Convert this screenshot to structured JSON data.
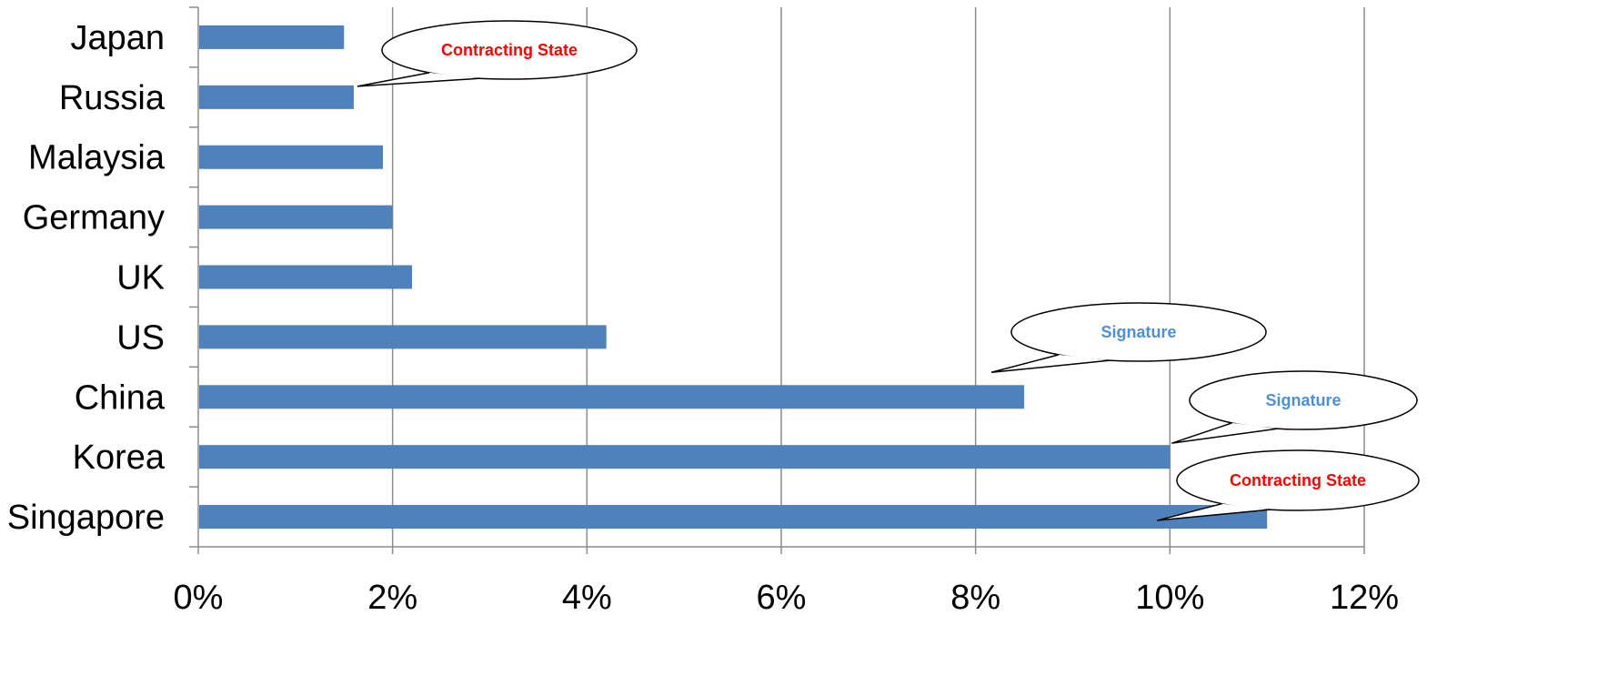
{
  "chart_data": {
    "type": "bar",
    "orientation": "horizontal",
    "categories": [
      "Japan",
      "Russia",
      "Malaysia",
      "Germany",
      "UK",
      "US",
      "China",
      "Korea",
      "Singapore"
    ],
    "values": [
      1.5,
      1.6,
      1.9,
      2.0,
      2.2,
      4.2,
      8.5,
      10.0,
      11.0
    ],
    "xlim": [
      0,
      12
    ],
    "x_ticks": [
      0,
      2,
      4,
      6,
      8,
      10,
      12
    ],
    "x_tick_labels": [
      "0%",
      "2%",
      "4%",
      "6%",
      "8%",
      "10%",
      "12%"
    ],
    "grid": "vertical",
    "legend": "none",
    "bar_color": "#4f81bd",
    "annotations": [
      {
        "text": "Contracting State",
        "points_to": "Russia",
        "color": "#ff0000"
      },
      {
        "text": "Signature",
        "points_to": "China",
        "color": "#4f8fd8"
      },
      {
        "text": "Signature",
        "points_to": "Korea",
        "color": "#4f8fd8"
      },
      {
        "text": "Contracting State",
        "points_to": "Singapore",
        "color": "#ff0000"
      }
    ]
  }
}
